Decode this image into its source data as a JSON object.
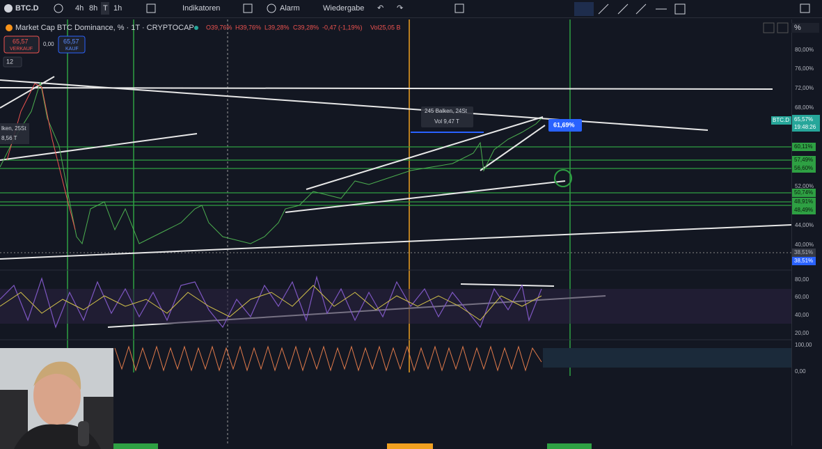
{
  "toolbar": {
    "symbol": "BTC.D",
    "intervals": [
      "4h",
      "8h",
      "T",
      "1h"
    ],
    "indicators": "Indikatoren",
    "alert": "Alarm",
    "replay": "Wiedergabe",
    "scale_mode": "%"
  },
  "legend": {
    "title": "Market Cap BTC Dominance, % · 1T · CRYPTOCAP",
    "open": "O39,76%",
    "high": "H39,76%",
    "low": "L39,28%",
    "close": "C39,28%",
    "change": "-0,47 (-1,19%)",
    "volume": "Vol25,05 B"
  },
  "trade": {
    "sell_price": "65,57",
    "sell_label": "VERKAUF",
    "spread": "0,00",
    "buy_price": "65,57",
    "buy_label": "KAUF"
  },
  "indicator_count": "12",
  "price_axis": [
    "80,00%",
    "76,00%",
    "72,00%",
    "68,00%",
    "52,00%",
    "44,00%",
    "40,00%"
  ],
  "level_labels": [
    "60,11%",
    "57,49%",
    "56,60%",
    "50,74%",
    "48,91%",
    "48,49%",
    "38,51%",
    "38,51%"
  ],
  "current_price": {
    "symbol": "BTC.D",
    "price": "65,57%",
    "countdown": "19:48:26"
  },
  "measure": {
    "bars": "245 Balken, 24St",
    "volume": "Vol 9,47 T",
    "price": "61,69%"
  },
  "measure_left": {
    "bars": "lken, 25St",
    "volume": "8,56 T"
  },
  "oscillator_axis": [
    "80,00",
    "60,00",
    "40,00",
    "20,00"
  ],
  "oscillator2_axis": [
    "100,00",
    "0,00"
  ]
}
